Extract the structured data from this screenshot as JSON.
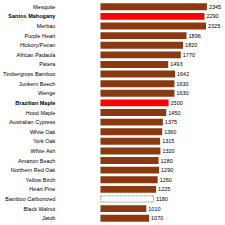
{
  "chart_data": {
    "type": "bar",
    "orientation": "horizontal",
    "categories": [
      "Mesquite",
      "Santos Mahogany",
      "Merbau",
      "Purple Heart",
      "Hickory/Pecan",
      "African Padaula",
      "Patera",
      "Timbergross Bamboo",
      "Junkern Beech",
      "Wenge",
      "Brazilian Maple",
      "Hood Maple",
      "Australian Cypress",
      "White Oak",
      "York Oak",
      "White Ash",
      "Amazon Beach",
      "Northern Red Oak",
      "Yellow Birch",
      "Heart Pine",
      "Bamboo Carbonized",
      "Black Walnut",
      "Jatob"
    ],
    "values": [
      2345,
      2290,
      2325,
      1896,
      1820,
      1770,
      1493,
      1642,
      1630,
      1630,
      1500,
      1450,
      1375,
      1360,
      1315,
      1320,
      1280,
      1290,
      1260,
      1225,
      1180,
      1010,
      1070
    ],
    "colors": [
      "#8B3A0F",
      "#FF0000",
      "#8B3A0F",
      "#8B3A0F",
      "#8B3A0F",
      "#8B3A0F",
      "#8B3A0F",
      "#8B3A0F",
      "#8B3A0F",
      "#8B3A0F",
      "#FF0000",
      "#8B3A0F",
      "#8B3A0F",
      "#8B3A0F",
      "#8B3A0F",
      "#8B3A0F",
      "#8B3A0F",
      "#8B3A0F",
      "#8B3A0F",
      "#8B3A0F",
      "#ffffff",
      "#8B3A0F",
      "#8B3A0F"
    ],
    "xlim": [
      -950,
      2700
    ],
    "data_labels": true,
    "tick_labels": "y",
    "grid": false
  }
}
